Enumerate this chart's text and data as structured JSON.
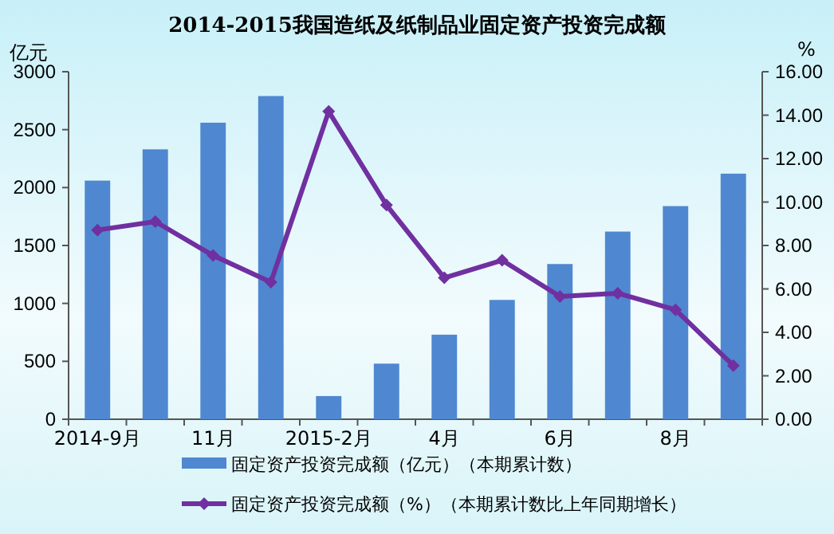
{
  "chart_data": {
    "type": "bar",
    "title": "2014-2015我国造纸及纸制品业固定资产投资完成额",
    "ylabel": "亿元",
    "y2label": "%",
    "categories": [
      "2014-9月",
      null,
      "11月",
      null,
      "2015-2月",
      null,
      "4月",
      null,
      "6月",
      null,
      "8月",
      null
    ],
    "series": [
      {
        "name": "固定资产投资完成额（亿元）（本期累计数）",
        "color": "#4f88d0",
        "values": [
          2060,
          2330,
          2560,
          2790,
          200,
          480,
          730,
          1030,
          1340,
          1620,
          1840,
          2120
        ]
      },
      {
        "name": "固定资产投资完成额（%）（本期累计数比上年同期增长）",
        "type": "line",
        "axis": "y2",
        "color": "#7030a0",
        "marker": "diamond",
        "values": [
          8.71,
          9.1,
          7.54,
          6.31,
          14.17,
          9.86,
          6.51,
          7.32,
          5.65,
          5.8,
          5.04,
          2.47
        ]
      }
    ],
    "ylim": [
      0,
      3000
    ],
    "yticks": [
      0,
      500,
      1000,
      1500,
      2000,
      2500,
      3000
    ],
    "y2lim": [
      0,
      16
    ],
    "y2ticks": [
      {
        "value": 0,
        "label": "0.00"
      },
      {
        "value": 2,
        "label": "2.00"
      },
      {
        "value": 4,
        "label": "4.00"
      },
      {
        "value": 6,
        "label": "6.00"
      },
      {
        "value": 8,
        "label": "8.00"
      },
      {
        "value": 10,
        "label": "10.00"
      },
      {
        "value": 12,
        "label": "12.00"
      },
      {
        "value": 14,
        "label": "14.00"
      },
      {
        "value": 16,
        "label": "16.00"
      }
    ],
    "legend": "bottom",
    "grid": false
  }
}
